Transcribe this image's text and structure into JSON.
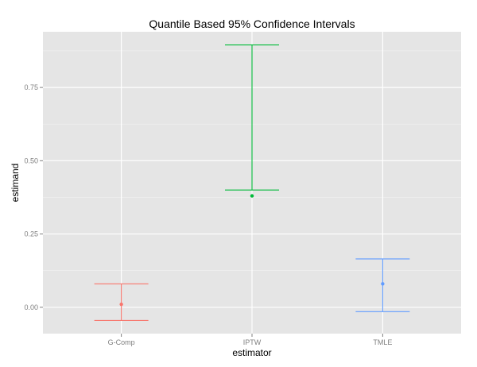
{
  "chart_data": {
    "type": "errorbar",
    "title": "Quantile Based 95% Confidence Intervals",
    "xlabel": "estimator",
    "ylabel": "estimand",
    "categories": [
      "G-Comp",
      "IPTW",
      "TMLE"
    ],
    "points": [
      0.01,
      0.38,
      0.08
    ],
    "lower": [
      -0.045,
      0.4,
      -0.015
    ],
    "upper": [
      0.08,
      0.895,
      0.165
    ],
    "colors": [
      "#F8766D",
      "#00BA38",
      "#619CFF"
    ],
    "yticks": [
      0.0,
      0.25,
      0.5,
      0.75
    ],
    "ytick_labels": [
      "0.00",
      "0.25",
      "0.50",
      "0.75"
    ],
    "ylim": [
      -0.09,
      0.94
    ],
    "grid": true,
    "legend": "none",
    "background": "#E5E5E5",
    "gridline_color": "#FFFFFF"
  }
}
